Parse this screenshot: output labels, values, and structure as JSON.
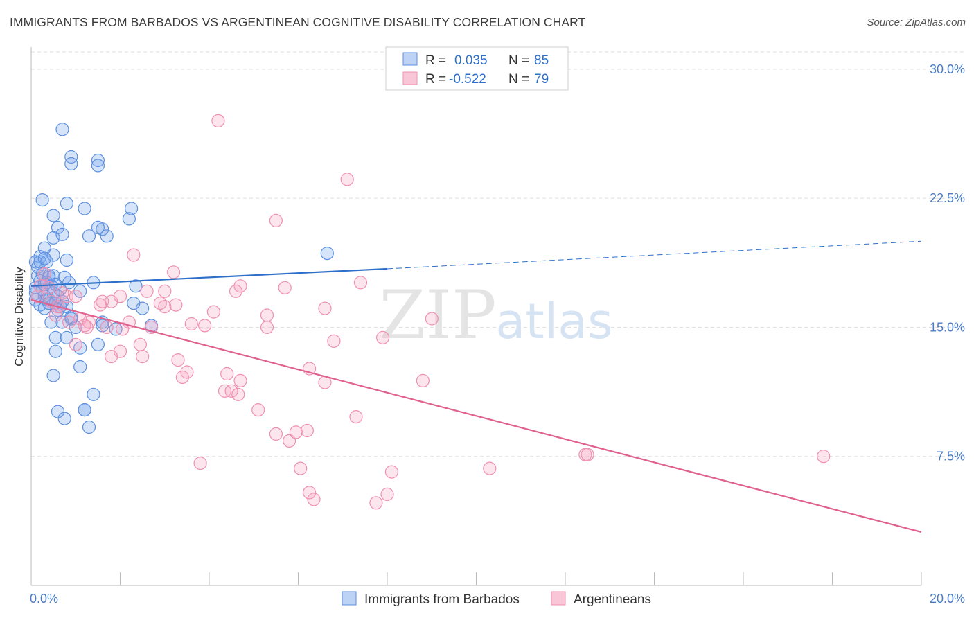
{
  "title": "IMMIGRANTS FROM BARBADOS VS ARGENTINEAN COGNITIVE DISABILITY CORRELATION CHART",
  "source": "Source: ZipAtlas.com",
  "watermark": {
    "zip": "ZIP",
    "atlas": "atlas"
  },
  "colors": {
    "blue": "#5b8fe0",
    "blue_line": "#2e6fc9",
    "pink": "#f08fb0",
    "pink_line": "#e0608e",
    "tick": "#4a7cc4",
    "grid": "#dddddd"
  },
  "legend_top": {
    "rows": [
      {
        "r_label": "R =",
        "r_value": "0.035",
        "n_label": "N =",
        "n_value": "85"
      },
      {
        "r_label": "R =",
        "r_value": "-0.522",
        "n_label": "N =",
        "n_value": "79"
      }
    ]
  },
  "chart_data": {
    "type": "scatter",
    "ylabel": "Cognitive Disability",
    "xlim": [
      0,
      20
    ],
    "ylim": [
      0,
      31
    ],
    "x_tick_labels": {
      "left": "0.0%",
      "right": "20.0%"
    },
    "y_ticks": [
      {
        "value": 7.5,
        "label": "7.5%"
      },
      {
        "value": 15,
        "label": "15.0%"
      },
      {
        "value": 22.5,
        "label": "22.5%"
      },
      {
        "value": 30,
        "label": "30.0%"
      }
    ],
    "grid": "horizontal-dashed",
    "legend_position": "bottom",
    "series": [
      {
        "name": "Immigrants from Barbados",
        "color": "#5b8fe0",
        "trend": {
          "x0": 0,
          "y0": 17.4,
          "x1": 8,
          "y1": 18.4,
          "dash_to_x": 20,
          "dash_to_y": 20.0
        },
        "points": [
          [
            0.7,
            26.5
          ],
          [
            0.9,
            24.9
          ],
          [
            0.9,
            24.5
          ],
          [
            1.5,
            24.7
          ],
          [
            1.5,
            24.4
          ],
          [
            0.25,
            22.4
          ],
          [
            0.5,
            21.5
          ],
          [
            0.8,
            22.2
          ],
          [
            1.2,
            21.9
          ],
          [
            2.25,
            21.9
          ],
          [
            2.2,
            21.3
          ],
          [
            0.6,
            20.8
          ],
          [
            0.5,
            20.2
          ],
          [
            0.7,
            20.4
          ],
          [
            1.3,
            20.3
          ],
          [
            1.6,
            20.7
          ],
          [
            1.7,
            20.3
          ],
          [
            1.5,
            20.8
          ],
          [
            0.3,
            19.6
          ],
          [
            0.2,
            19.1
          ],
          [
            0.1,
            18.8
          ],
          [
            0.5,
            19.2
          ],
          [
            0.8,
            18.9
          ],
          [
            0.35,
            18.8
          ],
          [
            0.15,
            18.5
          ],
          [
            0.4,
            18.0
          ],
          [
            0.2,
            17.7
          ],
          [
            0.3,
            17.5
          ],
          [
            0.45,
            17.4
          ],
          [
            0.25,
            17.2
          ],
          [
            0.1,
            17.0
          ],
          [
            0.5,
            17.0
          ],
          [
            0.6,
            16.8
          ],
          [
            0.4,
            16.6
          ],
          [
            0.55,
            16.4
          ],
          [
            0.7,
            16.5
          ],
          [
            0.35,
            16.6
          ],
          [
            0.65,
            16.2
          ],
          [
            0.8,
            16.2
          ],
          [
            0.3,
            16.1
          ],
          [
            0.2,
            16.3
          ],
          [
            0.1,
            17.3
          ],
          [
            0.15,
            18.0
          ],
          [
            0.25,
            18.1
          ],
          [
            0.75,
            17.9
          ],
          [
            1.1,
            17.1
          ],
          [
            1.4,
            17.6
          ],
          [
            0.85,
            17.6
          ],
          [
            2.35,
            17.4
          ],
          [
            2.5,
            16.1
          ],
          [
            2.3,
            16.4
          ],
          [
            0.9,
            15.6
          ],
          [
            1.6,
            15.3
          ],
          [
            1.6,
            15.1
          ],
          [
            0.7,
            15.3
          ],
          [
            1.0,
            15.0
          ],
          [
            1.9,
            14.9
          ],
          [
            2.7,
            15.1
          ],
          [
            0.55,
            14.4
          ],
          [
            0.8,
            14.4
          ],
          [
            1.5,
            14.0
          ],
          [
            0.55,
            13.6
          ],
          [
            1.1,
            13.8
          ],
          [
            1.1,
            12.7
          ],
          [
            0.5,
            12.2
          ],
          [
            1.4,
            11.1
          ],
          [
            0.6,
            10.1
          ],
          [
            1.2,
            10.2
          ],
          [
            1.2,
            10.2
          ],
          [
            0.75,
            9.7
          ],
          [
            1.3,
            9.2
          ],
          [
            6.65,
            19.3
          ],
          [
            0.4,
            17.9
          ],
          [
            0.3,
            16.8
          ],
          [
            0.6,
            16.0
          ],
          [
            0.45,
            15.3
          ],
          [
            0.9,
            15.5
          ],
          [
            0.2,
            18.8
          ],
          [
            0.35,
            17.6
          ],
          [
            0.5,
            18.0
          ],
          [
            0.1,
            16.6
          ],
          [
            0.65,
            17.2
          ],
          [
            0.3,
            19.0
          ],
          [
            0.4,
            16.4
          ],
          [
            0.55,
            17.5
          ]
        ]
      },
      {
        "name": "Argentineans",
        "color": "#f08fb0",
        "trend": {
          "x0": 0,
          "y0": 16.6,
          "x1": 20,
          "y1": 3.1
        },
        "points": [
          [
            4.2,
            27.0
          ],
          [
            7.1,
            23.6
          ],
          [
            5.5,
            21.2
          ],
          [
            2.3,
            19.2
          ],
          [
            3.2,
            18.2
          ],
          [
            7.4,
            17.6
          ],
          [
            5.7,
            17.3
          ],
          [
            4.7,
            17.4
          ],
          [
            3.0,
            17.1
          ],
          [
            2.6,
            17.1
          ],
          [
            4.6,
            17.1
          ],
          [
            0.4,
            17.3
          ],
          [
            0.7,
            17.0
          ],
          [
            0.8,
            16.8
          ],
          [
            1.0,
            16.8
          ],
          [
            1.6,
            16.5
          ],
          [
            1.8,
            16.5
          ],
          [
            2.0,
            16.8
          ],
          [
            1.55,
            16.3
          ],
          [
            3.0,
            16.2
          ],
          [
            3.25,
            16.3
          ],
          [
            4.1,
            15.9
          ],
          [
            0.55,
            15.7
          ],
          [
            1.1,
            15.5
          ],
          [
            5.3,
            15.7
          ],
          [
            6.6,
            16.1
          ],
          [
            9.0,
            15.5
          ],
          [
            3.6,
            15.2
          ],
          [
            2.2,
            15.3
          ],
          [
            1.7,
            15.0
          ],
          [
            1.25,
            15.0
          ],
          [
            2.05,
            14.9
          ],
          [
            2.7,
            15.0
          ],
          [
            5.3,
            15.0
          ],
          [
            6.8,
            14.2
          ],
          [
            7.9,
            14.4
          ],
          [
            2.45,
            14.0
          ],
          [
            1.0,
            14.0
          ],
          [
            2.0,
            13.6
          ],
          [
            2.5,
            13.3
          ],
          [
            1.8,
            13.3
          ],
          [
            3.3,
            13.1
          ],
          [
            3.5,
            12.4
          ],
          [
            3.4,
            12.1
          ],
          [
            4.4,
            12.3
          ],
          [
            6.25,
            12.6
          ],
          [
            6.6,
            11.8
          ],
          [
            4.7,
            11.9
          ],
          [
            8.8,
            11.9
          ],
          [
            4.35,
            11.3
          ],
          [
            4.5,
            11.3
          ],
          [
            4.65,
            11.1
          ],
          [
            5.1,
            10.2
          ],
          [
            7.3,
            9.8
          ],
          [
            5.5,
            8.8
          ],
          [
            5.8,
            8.4
          ],
          [
            6.2,
            9.0
          ],
          [
            5.95,
            8.9
          ],
          [
            3.8,
            7.1
          ],
          [
            6.05,
            6.8
          ],
          [
            8.1,
            6.6
          ],
          [
            10.3,
            6.8
          ],
          [
            12.45,
            7.6
          ],
          [
            12.5,
            7.6
          ],
          [
            17.8,
            7.5
          ],
          [
            6.25,
            5.4
          ],
          [
            6.35,
            5.0
          ],
          [
            7.75,
            4.8
          ],
          [
            8.0,
            5.3
          ],
          [
            0.2,
            17.4
          ],
          [
            0.15,
            16.8
          ],
          [
            0.3,
            18.1
          ],
          [
            0.45,
            16.5
          ],
          [
            0.6,
            16.2
          ],
          [
            0.85,
            15.3
          ],
          [
            1.3,
            15.3
          ],
          [
            1.2,
            15.1
          ],
          [
            2.9,
            16.4
          ],
          [
            3.9,
            15.1
          ]
        ]
      }
    ]
  }
}
